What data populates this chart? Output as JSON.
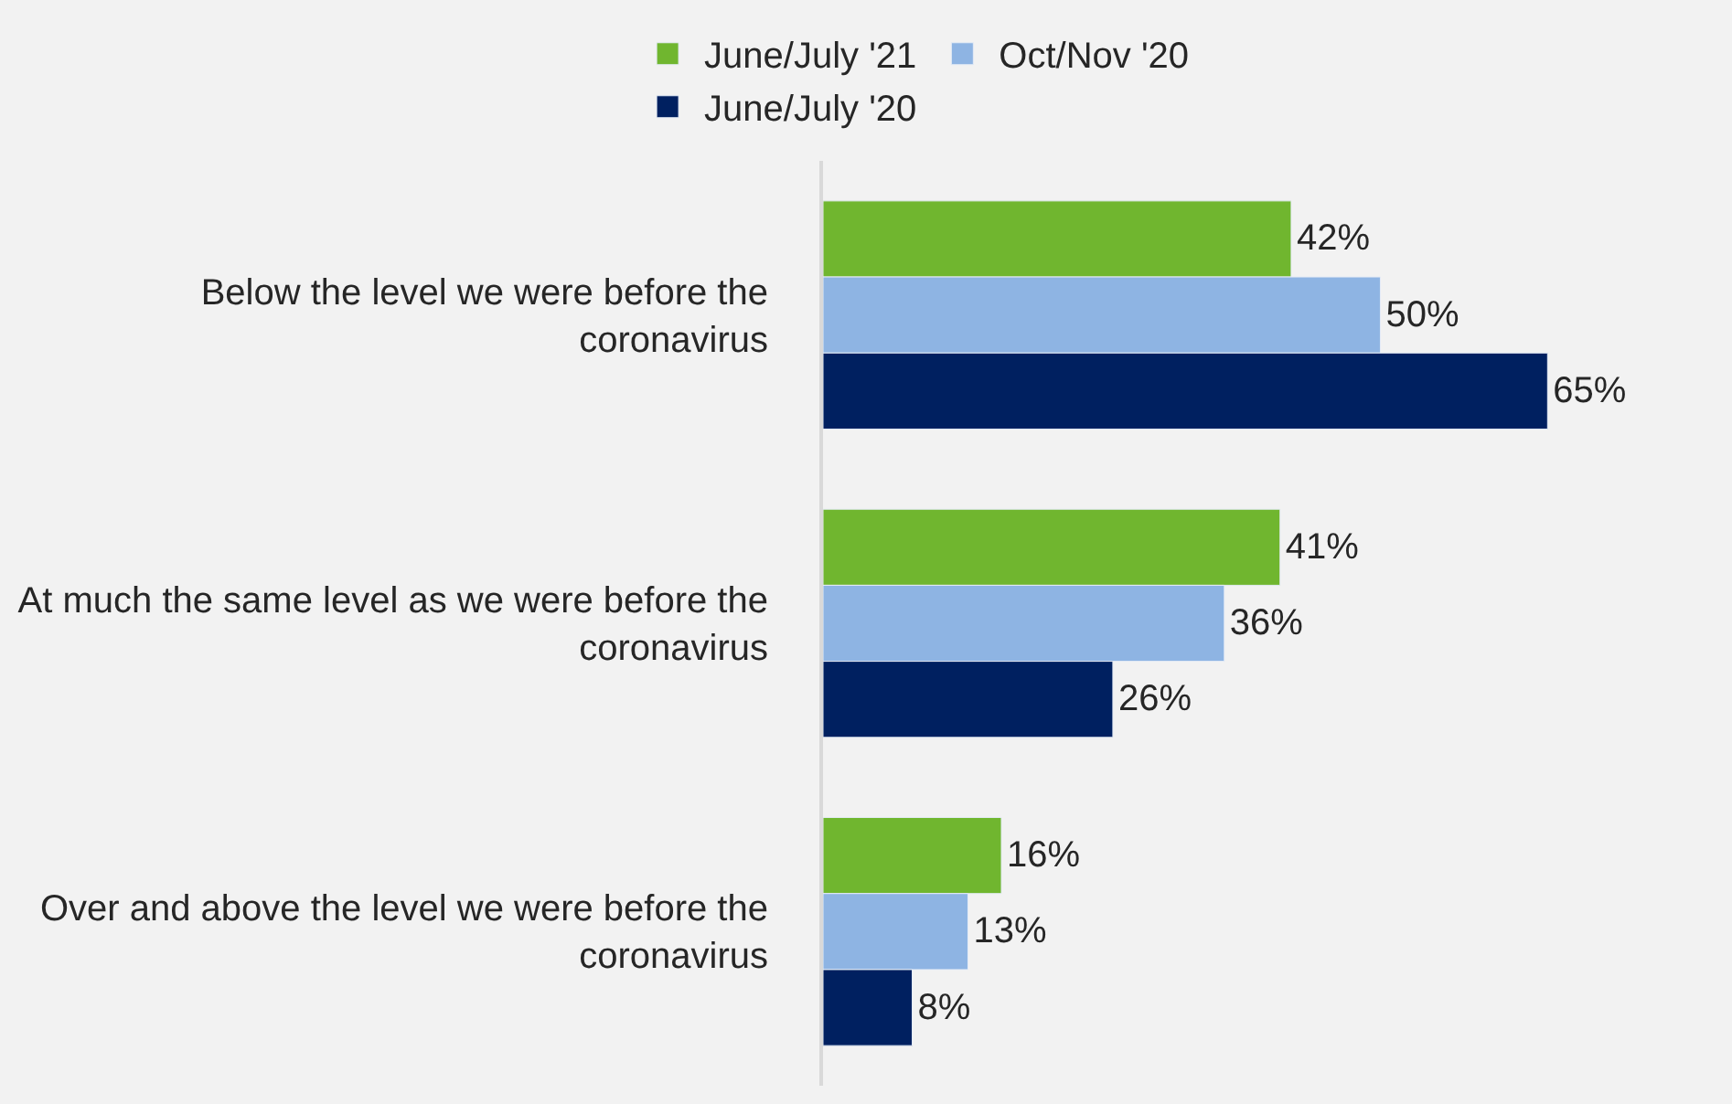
{
  "chart_data": {
    "type": "bar",
    "orientation": "horizontal",
    "categories": [
      "Below the level we were before the coronavirus",
      "At much the same level as we were before the coronavirus",
      "Over and above the level we were before the coronavirus"
    ],
    "series": [
      {
        "name": "June/July '21",
        "color": "#70b62f",
        "values": [
          42,
          41,
          16
        ],
        "value_labels": [
          "42%",
          "41%",
          "16%"
        ]
      },
      {
        "name": "Oct/Nov '20",
        "color": "#8eb4e3",
        "values": [
          50,
          36,
          13
        ],
        "value_labels": [
          "50%",
          "36%",
          "13%"
        ]
      },
      {
        "name": "June/July '20",
        "color": "#002060",
        "values": [
          65,
          26,
          8
        ],
        "value_labels": [
          "65%",
          "26%",
          "8%"
        ]
      }
    ],
    "legend": "top",
    "grid": false,
    "tick_labels": "y"
  }
}
